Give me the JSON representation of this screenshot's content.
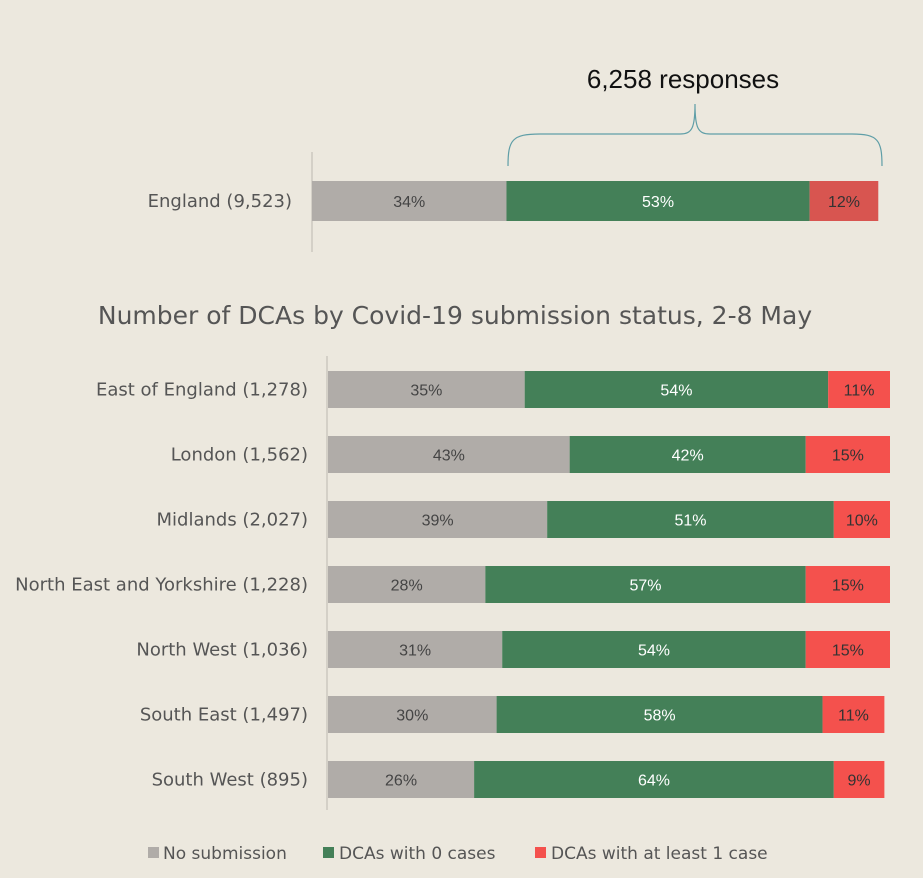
{
  "colors": {
    "no_submission": "#b0aca8",
    "zero_cases": "#448058",
    "at_least_one": "#f4514d",
    "england_at_least_one": "#d85550"
  },
  "chart_data": [
    {
      "type": "bar",
      "orientation": "horizontal",
      "stacked": true,
      "annotation": "6,258 responses",
      "categories": [
        "England (9,523)"
      ],
      "series": [
        {
          "name": "No submission",
          "values": [
            34
          ]
        },
        {
          "name": "DCAs with 0 cases",
          "values": [
            53
          ]
        },
        {
          "name": "DCAs with at least 1 case",
          "values": [
            12
          ]
        }
      ],
      "value_suffix": "%"
    },
    {
      "type": "bar",
      "orientation": "horizontal",
      "stacked": true,
      "title": "Number of DCAs by Covid-19 submission status, 2-8 May",
      "categories": [
        "East of England (1,278)",
        "London (1,562)",
        "Midlands (2,027)",
        "North East and Yorkshire (1,228)",
        "North West (1,036)",
        "South East (1,497)",
        "South West (895)"
      ],
      "series": [
        {
          "name": "No submission",
          "values": [
            35,
            43,
            39,
            28,
            31,
            30,
            26
          ]
        },
        {
          "name": "DCAs with 0 cases",
          "values": [
            54,
            42,
            51,
            57,
            54,
            58,
            64
          ]
        },
        {
          "name": "DCAs with at least 1 case",
          "values": [
            11,
            15,
            10,
            15,
            15,
            11,
            9
          ]
        }
      ],
      "value_suffix": "%",
      "legend_position": "bottom"
    }
  ]
}
